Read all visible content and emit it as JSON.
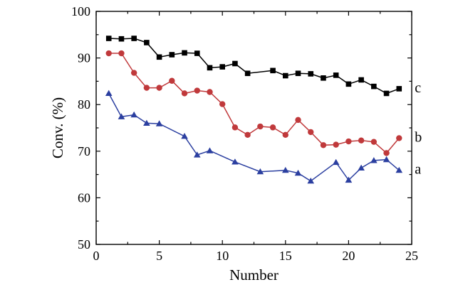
{
  "chart_data": {
    "type": "line",
    "title": "",
    "xlabel": "Number",
    "ylabel": "Conv. (%)",
    "xlim": [
      0,
      25
    ],
    "ylim": [
      50,
      100
    ],
    "xticks": [
      0,
      5,
      10,
      15,
      20,
      25
    ],
    "yticks": [
      50,
      60,
      70,
      80,
      90,
      100
    ],
    "grid": false,
    "legend": "none; series labelled directly at right end of lines",
    "series": [
      {
        "name": "c",
        "color": "#000000",
        "marker": "square",
        "x": [
          1,
          2,
          3,
          4,
          5,
          6,
          7,
          8,
          9,
          10,
          11,
          12,
          14,
          15,
          16,
          17,
          18,
          19,
          20,
          21,
          22,
          23,
          24
        ],
        "y": [
          94.2,
          94.1,
          94.2,
          93.3,
          90.2,
          90.7,
          91.1,
          91.0,
          87.9,
          88.1,
          88.8,
          86.7,
          87.3,
          86.2,
          86.7,
          86.6,
          85.7,
          86.3,
          84.4,
          85.3,
          83.9,
          82.4,
          83.4
        ]
      },
      {
        "name": "b",
        "color": "#c0393b",
        "marker": "circle",
        "x": [
          1,
          2,
          3,
          4,
          5,
          6,
          7,
          8,
          9,
          10,
          11,
          12,
          13,
          14,
          15,
          16,
          17,
          18,
          19,
          20,
          21,
          22,
          23,
          24
        ],
        "y": [
          91.0,
          91.0,
          86.8,
          83.6,
          83.6,
          85.1,
          82.4,
          83.0,
          82.7,
          80.1,
          75.1,
          73.5,
          75.3,
          75.1,
          73.5,
          76.7,
          74.1,
          71.3,
          71.4,
          72.1,
          72.3,
          72.0,
          69.6,
          72.8
        ]
      },
      {
        "name": "a",
        "color": "#2b3fa0",
        "marker": "triangle",
        "x": [
          1,
          2,
          3,
          4,
          5,
          7,
          8,
          9,
          11,
          13,
          15,
          16,
          17,
          19,
          20,
          21,
          22,
          23,
          24
        ],
        "y": [
          82.4,
          77.4,
          77.8,
          76.0,
          75.9,
          73.2,
          69.2,
          70.1,
          67.7,
          65.6,
          65.9,
          65.3,
          63.6,
          67.6,
          63.8,
          66.4,
          68.0,
          68.2,
          65.9
        ]
      }
    ]
  }
}
